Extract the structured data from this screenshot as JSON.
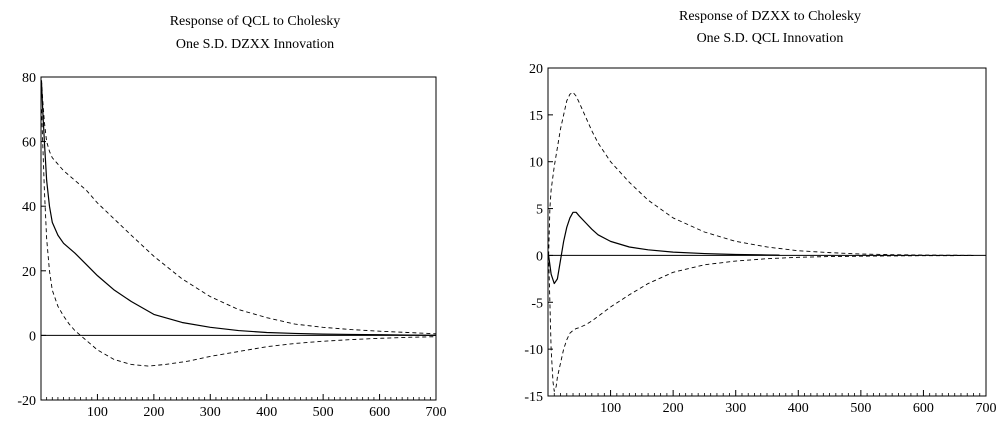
{
  "chart_data": [
    {
      "type": "line",
      "title": [
        "Response of QCL to Cholesky",
        "One S.D. DZXX Innovation"
      ],
      "xlabel": "",
      "ylabel": "",
      "xlim": [
        0,
        700
      ],
      "ylim": [
        -20,
        80
      ],
      "xticks": [
        100,
        200,
        300,
        400,
        500,
        600,
        700
      ],
      "yticks": [
        -20,
        0,
        20,
        40,
        60,
        80
      ],
      "grid": false,
      "zero_line": true,
      "series": [
        {
          "style": "solid",
          "x": [
            1,
            3,
            6,
            10,
            15,
            20,
            30,
            40,
            50,
            60,
            80,
            100,
            130,
            160,
            200,
            250,
            300,
            350,
            400,
            450,
            500,
            550,
            600,
            650,
            700
          ],
          "y": [
            78,
            70,
            60,
            48,
            40,
            35,
            31,
            28.5,
            27,
            25.5,
            22,
            18.5,
            14,
            10.5,
            6.5,
            4,
            2.5,
            1.5,
            0.9,
            0.6,
            0.4,
            0.3,
            0.2,
            0.1,
            0.05
          ]
        },
        {
          "style": "dashed",
          "x": [
            1,
            3,
            6,
            10,
            15,
            20,
            30,
            40,
            50,
            60,
            80,
            100,
            130,
            160,
            200,
            250,
            300,
            350,
            400,
            450,
            500,
            550,
            600,
            650,
            700
          ],
          "y": [
            79,
            73,
            66,
            60,
            57,
            55,
            53,
            51,
            49.5,
            48,
            45,
            41,
            36,
            31,
            24.5,
            17.5,
            12,
            8,
            5.5,
            3.5,
            2.5,
            1.8,
            1.3,
            0.9,
            0.5
          ]
        },
        {
          "style": "dashed",
          "x": [
            1,
            3,
            6,
            10,
            15,
            20,
            30,
            40,
            50,
            60,
            70,
            80,
            100,
            130,
            160,
            190,
            220,
            260,
            300,
            350,
            400,
            450,
            500,
            550,
            600,
            650,
            700
          ],
          "y": [
            70,
            60,
            45,
            30,
            20,
            14,
            9,
            6,
            3.5,
            1.5,
            0,
            -1.5,
            -4.5,
            -7.5,
            -9,
            -9.5,
            -9,
            -8,
            -6.5,
            -5,
            -3.5,
            -2.5,
            -1.8,
            -1.3,
            -0.9,
            -0.6,
            -0.4
          ]
        }
      ]
    },
    {
      "type": "line",
      "title": [
        "Response of DZXX to Cholesky",
        "One S.D. QCL Innovation"
      ],
      "xlabel": "",
      "ylabel": "",
      "xlim": [
        0,
        700
      ],
      "ylim": [
        -15,
        20
      ],
      "xticks": [
        100,
        200,
        300,
        400,
        500,
        600,
        700
      ],
      "yticks": [
        -15,
        -10,
        -5,
        0,
        5,
        10,
        15,
        20
      ],
      "grid": false,
      "zero_line": true,
      "series": [
        {
          "style": "solid",
          "x": [
            1,
            5,
            10,
            15,
            20,
            25,
            30,
            35,
            40,
            45,
            50,
            60,
            70,
            80,
            100,
            130,
            160,
            200,
            250,
            300,
            350,
            370
          ],
          "y": [
            0,
            -2,
            -3,
            -2.5,
            -0.5,
            1.5,
            3,
            4,
            4.6,
            4.6,
            4.2,
            3.5,
            2.8,
            2.2,
            1.5,
            0.9,
            0.6,
            0.35,
            0.2,
            0.1,
            0.05,
            0.03
          ]
        },
        {
          "style": "dashed",
          "x": [
            1,
            3,
            5,
            8,
            10,
            15,
            20,
            25,
            30,
            35,
            40,
            45,
            50,
            60,
            70,
            80,
            100,
            130,
            160,
            200,
            250,
            300,
            350,
            400,
            450,
            500,
            550,
            600,
            650,
            680
          ],
          "y": [
            0,
            5,
            7,
            8.5,
            9.5,
            11.5,
            13.5,
            15,
            16.5,
            17.2,
            17.4,
            17,
            16.3,
            14.8,
            13.3,
            12,
            10,
            7.8,
            5.9,
            4,
            2.5,
            1.5,
            0.9,
            0.5,
            0.3,
            0.15,
            0.08,
            0.04,
            0.02,
            0.01
          ]
        },
        {
          "style": "dashed",
          "x": [
            1,
            3,
            5,
            8,
            10,
            13,
            15,
            20,
            25,
            30,
            35,
            40,
            45,
            50,
            60,
            70,
            80,
            100,
            130,
            160,
            200,
            250,
            300,
            350,
            400,
            450,
            500,
            550,
            600,
            650,
            680
          ],
          "y": [
            0,
            -5,
            -10,
            -13.5,
            -14.5,
            -14,
            -13,
            -11.5,
            -10,
            -9,
            -8.3,
            -8,
            -7.8,
            -7.7,
            -7.4,
            -7,
            -6.5,
            -5.5,
            -4.2,
            -3,
            -1.8,
            -1,
            -0.6,
            -0.35,
            -0.2,
            -0.12,
            -0.08,
            -0.05,
            -0.03,
            -0.02,
            -0.01
          ]
        }
      ]
    }
  ]
}
